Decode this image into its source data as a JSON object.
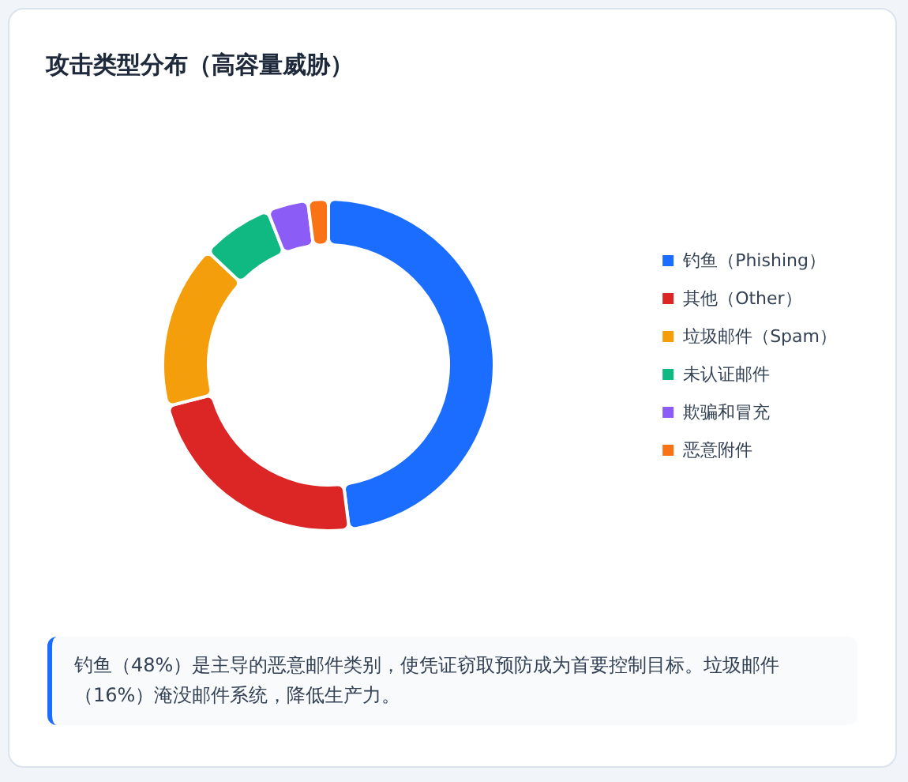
{
  "chart_data": {
    "type": "donut",
    "title": "攻击类型分布（高容量威胁）",
    "categories": [
      "钓鱼（Phishing）",
      "其他（Other）",
      "垃圾邮件（Spam）",
      "未认证邮件",
      "欺骗和冒充",
      "恶意附件"
    ],
    "values": [
      48,
      23,
      16,
      7,
      4,
      2
    ],
    "colors": [
      "#1a6dff",
      "#dc2626",
      "#f59e0b",
      "#10b981",
      "#8b5cf6",
      "#f97316"
    ],
    "legend": "right",
    "annotations": [
      "钓鱼（48%）是主导的恶意邮件类别，使凭证窃取预防成为首要控制目标。垃圾邮件（16%）淹没邮件系统，降低生产力。"
    ]
  }
}
